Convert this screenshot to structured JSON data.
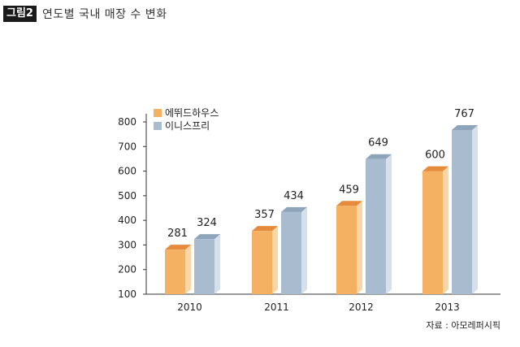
{
  "figure": {
    "tag": "그림2",
    "title": "연도별 국내 매장 수 변화",
    "source": "자료 : 아모레퍼시픽"
  },
  "colors": {
    "s0_front": "#F3B161",
    "s0_side": "#F8D6A6",
    "s0_top": "#E68A3C",
    "s1_front": "#A8BBCF",
    "s1_side": "#D6E0EB",
    "s1_top": "#8EA4BB",
    "axis": "#333333"
  },
  "chart_data": {
    "type": "bar",
    "title": "연도별 국내 매장 수 변화",
    "categories": [
      "2010",
      "2011",
      "2012",
      "2013"
    ],
    "series": [
      {
        "name": "에뛰드하우스",
        "values": [
          281,
          357,
          459,
          600
        ]
      },
      {
        "name": "이니스프리",
        "values": [
          324,
          434,
          649,
          767
        ]
      }
    ],
    "ylim": [
      100,
      800
    ],
    "yticks": [
      100,
      200,
      300,
      400,
      500,
      600,
      700,
      800
    ],
    "xlabel": "",
    "ylabel": "",
    "legend": "top-left",
    "grid": false
  }
}
